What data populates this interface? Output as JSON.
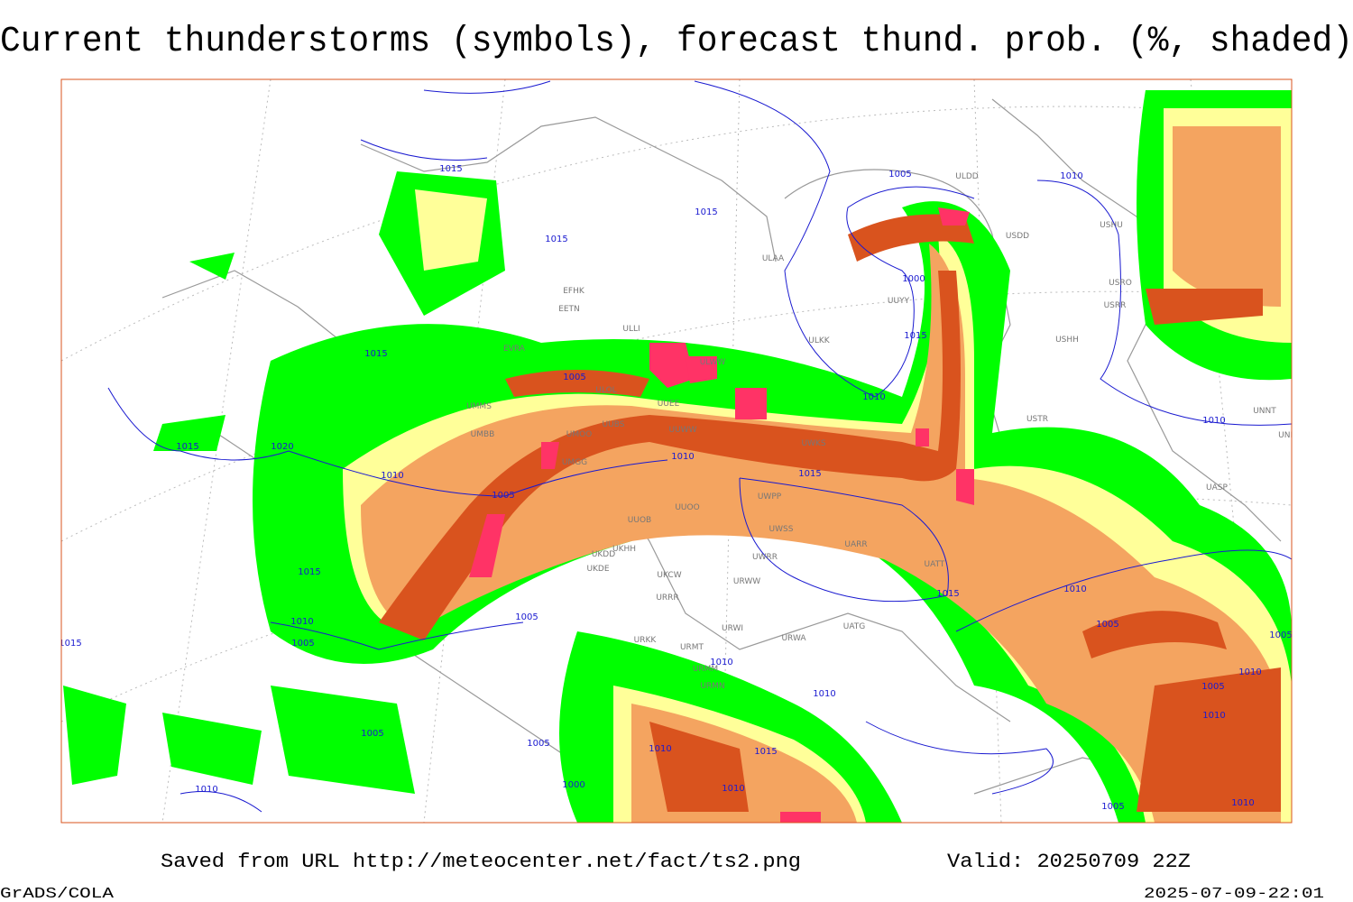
{
  "title": "Current thunderstorms (symbols), forecast thund. prob. (%, shaded)",
  "footer": {
    "source": "Saved from URL http://meteocenter.net/fact/ts2.png",
    "valid": "Valid: 20250709 22Z",
    "software": "GrADS/COLA",
    "timestamp": "2025-07-09-22:01"
  },
  "isobar_labels": [
    "1015",
    "1015",
    "1015",
    "1005",
    "1010",
    "1000",
    "1015",
    "1015",
    "1005",
    "1010",
    "1010",
    "1015",
    "1020",
    "1010",
    "1010",
    "1015",
    "1005",
    "1015",
    "1015",
    "1010",
    "1005",
    "1010",
    "1005",
    "1005",
    "1010",
    "1010",
    "1005",
    "1010",
    "1010",
    "1005",
    "1005",
    "1010",
    "1015",
    "1000",
    "1010",
    "1010",
    "1005",
    "1010",
    "1015",
    "1005"
  ],
  "stations": [
    "ULDD",
    "USDD",
    "USHU",
    "ULAA",
    "EFHK",
    "EETN",
    "UUYY",
    "USRO",
    "USRR",
    "ULLI",
    "ULKK",
    "USHH",
    "EVRA",
    "ULWW",
    "ULOL",
    "UUEE",
    "USTR",
    "UNNT",
    "UMMS",
    "UUWW",
    "UUBS",
    "UMBB",
    "UMOO",
    "UWKS",
    "UNBB",
    "UMGG",
    "UUOO",
    "UWPP",
    "UUOB",
    "UWSS",
    "UASP",
    "UKHH",
    "UKDD",
    "UWRR",
    "UARR",
    "UATT",
    "UKDE",
    "UKCW",
    "URWW",
    "URRR",
    "URWI",
    "UATG",
    "URKK",
    "URMT",
    "URWA",
    "URMM",
    "URMN"
  ]
}
